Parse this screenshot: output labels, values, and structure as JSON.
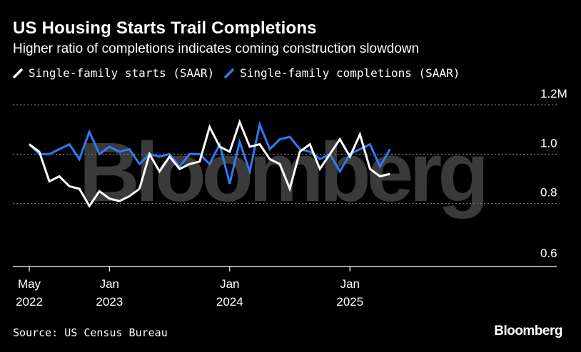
{
  "title": "US Housing Starts Trail Completions",
  "subtitle": "Higher ratio of completions indicates coming construction slowdown",
  "source": "Source: US Census Bureau",
  "brand": "Bloomberg",
  "watermark": "Bloomberg",
  "colors": {
    "starts": "#ffffff",
    "completions": "#2f7bf5",
    "grid": "#8c8c8c",
    "background": "#000000"
  },
  "chart_data": {
    "type": "line",
    "title": "US Housing Starts Trail Completions",
    "subtitle": "Higher ratio of completions indicates coming construction slowdown",
    "x": [
      "2022-05",
      "2022-06",
      "2022-07",
      "2022-08",
      "2022-09",
      "2022-10",
      "2022-11",
      "2022-12",
      "2023-01",
      "2023-02",
      "2023-03",
      "2023-04",
      "2023-05",
      "2023-06",
      "2023-07",
      "2023-08",
      "2023-09",
      "2023-10",
      "2023-11",
      "2023-12",
      "2024-01",
      "2024-02",
      "2024-03",
      "2024-04",
      "2024-05",
      "2024-06",
      "2024-07",
      "2024-08",
      "2024-09",
      "2024-10",
      "2024-11",
      "2024-12",
      "2025-01",
      "2025-02",
      "2025-03",
      "2025-04",
      "2025-05",
      "2025-06"
    ],
    "series": [
      {
        "name": "Single-family starts (SAAR)",
        "color": "#ffffff",
        "values": [
          1.04,
          1.01,
          0.89,
          0.91,
          0.87,
          0.86,
          0.79,
          0.85,
          0.82,
          0.81,
          0.83,
          0.86,
          1.0,
          0.93,
          0.99,
          0.94,
          0.96,
          0.97,
          1.11,
          1.03,
          1.01,
          1.13,
          1.03,
          1.04,
          0.98,
          0.96,
          0.86,
          1.01,
          1.04,
          0.94,
          1.0,
          1.06,
          0.99,
          1.08,
          0.94,
          0.91,
          0.92,
          null
        ]
      },
      {
        "name": "Single-family completions (SAAR)",
        "color": "#2f7bf5",
        "values": [
          1.04,
          1.0,
          1.0,
          1.02,
          1.04,
          0.98,
          1.09,
          1.0,
          1.03,
          1.01,
          1.02,
          0.96,
          1.0,
          0.99,
          1.0,
          0.95,
          1.0,
          1.0,
          0.96,
          1.04,
          0.88,
          1.05,
          0.93,
          1.12,
          1.02,
          1.06,
          1.07,
          1.02,
          1.01,
          0.98,
          1.0,
          0.93,
          1.0,
          1.02,
          1.04,
          0.95,
          1.02,
          null
        ]
      }
    ],
    "y_ticks": [
      {
        "value": 0.6,
        "label": "0.6"
      },
      {
        "value": 0.8,
        "label": "0.8"
      },
      {
        "value": 1.0,
        "label": "1.0"
      },
      {
        "value": 1.2,
        "label": "1.2M"
      }
    ],
    "x_ticks": [
      {
        "x": "2022-05",
        "line1": "May",
        "line2": "2022"
      },
      {
        "x": "2023-01",
        "line1": "Jan",
        "line2": "2023"
      },
      {
        "x": "2024-01",
        "line1": "Jan",
        "line2": "2024"
      },
      {
        "x": "2025-01",
        "line1": "Jan",
        "line2": "2025"
      }
    ],
    "ylim": [
      0.6,
      1.2
    ],
    "grid": true,
    "legend_position": "top-left",
    "xlabel": "",
    "ylabel": ""
  }
}
